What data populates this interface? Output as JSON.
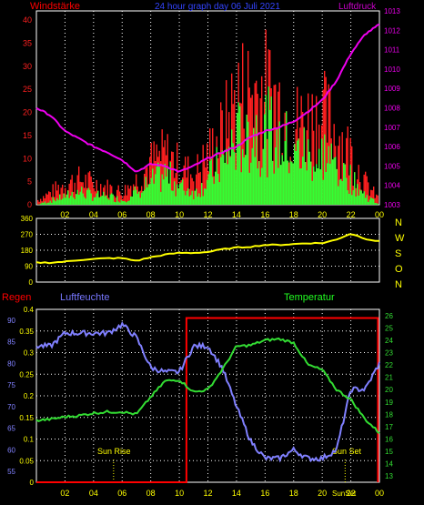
{
  "header": {
    "left": "Windstärke",
    "center": "24 hour graph day  06 Juli 2021",
    "right": "Luftdruck"
  },
  "panel2": {
    "right_labels": [
      "N",
      "W",
      "S",
      "O",
      "N"
    ]
  },
  "panel3": {
    "labels": {
      "left1": "Regen",
      "left2": "Luftfeuchte",
      "right": "Temperatur"
    },
    "annotations": {
      "sunrise": "Sun Rise",
      "sunset": "Sun Set",
      "sunset_bottom": "SunSet"
    }
  },
  "colors": {
    "gust": "#ff2020",
    "wind": "#33ff33",
    "pressure": "#ee00ee",
    "direction": "#ffff00",
    "humidity": "#8080ff",
    "temperature": "#33dd33",
    "rain": "#ff0000",
    "grid": "#ffffff",
    "tick_x": "#ffff00"
  },
  "chart_data": [
    {
      "type": "bar",
      "title": "24 hour graph day  06 Juli 2021",
      "ylabel": "Windstärke",
      "y2label": "Luftdruck",
      "ylim": [
        0,
        42
      ],
      "y2lim": [
        1003,
        1013
      ],
      "yticks": [
        0,
        5,
        10,
        15,
        20,
        25,
        30,
        35,
        40
      ],
      "y2ticks": [
        1003,
        1004,
        1005,
        1006,
        1007,
        1008,
        1009,
        1010,
        1011,
        1012,
        1013
      ],
      "x_ticks": [
        "02",
        "04",
        "06",
        "08",
        "10",
        "12",
        "14",
        "16",
        "18",
        "20",
        "22",
        "00"
      ],
      "x_hours": [
        0,
        24
      ],
      "gust_profile": {
        "x": [
          0,
          1,
          2,
          3,
          4,
          5,
          6,
          7,
          8,
          9,
          10,
          11,
          12,
          13,
          14,
          15,
          16,
          17,
          18,
          19,
          20,
          21,
          22,
          23,
          24
        ],
        "y": [
          1,
          3,
          5,
          6,
          5,
          4,
          3,
          6,
          10,
          12,
          9,
          7,
          12,
          17,
          26,
          27,
          27,
          24,
          19,
          20,
          21,
          17,
          12,
          5,
          1
        ]
      },
      "wind_profile": {
        "x": [
          0,
          1,
          2,
          3,
          4,
          5,
          6,
          7,
          8,
          9,
          10,
          11,
          12,
          13,
          14,
          15,
          16,
          17,
          18,
          19,
          20,
          21,
          22,
          23,
          24
        ],
        "y": [
          0,
          1,
          2,
          3,
          2,
          2,
          1,
          3,
          5,
          7,
          4,
          3,
          6,
          10,
          15,
          17,
          17,
          15,
          12,
          12,
          12,
          9,
          6,
          2,
          0
        ]
      },
      "pressure": {
        "x": [
          0,
          1,
          2,
          3,
          4,
          5,
          6,
          7,
          8,
          9,
          10,
          11,
          12,
          13,
          14,
          15,
          16,
          17,
          18,
          19,
          20,
          21,
          22,
          23,
          24
        ],
        "y": [
          1008.0,
          1007.6,
          1006.8,
          1006.4,
          1006.0,
          1005.7,
          1005.3,
          1004.7,
          1005.1,
          1005.0,
          1004.7,
          1005.0,
          1005.4,
          1005.7,
          1006.0,
          1006.5,
          1006.8,
          1007.0,
          1007.3,
          1007.8,
          1008.4,
          1009.4,
          1010.8,
          1011.8,
          1012.3
        ]
      }
    },
    {
      "type": "line",
      "yticks": [
        0,
        90,
        180,
        270,
        360
      ],
      "ylim": [
        0,
        360
      ],
      "wind_direction": {
        "x": [
          0,
          1,
          2,
          3,
          4,
          5,
          6,
          7,
          8,
          9,
          10,
          11,
          12,
          13,
          14,
          15,
          16,
          17,
          18,
          19,
          20,
          21,
          22,
          23,
          24
        ],
        "y": [
          110,
          110,
          115,
          125,
          130,
          135,
          135,
          120,
          140,
          155,
          165,
          165,
          170,
          185,
          195,
          200,
          210,
          210,
          215,
          220,
          220,
          240,
          275,
          245,
          230
        ]
      }
    },
    {
      "type": "line",
      "rain_ylim": [
        0,
        0.4
      ],
      "rain_ticks": [
        0,
        0.05,
        0.1,
        0.15,
        0.2,
        0.25,
        0.3,
        0.35,
        0.4
      ],
      "humidity_ylim": [
        52.5,
        92.5
      ],
      "humidity_ticks": [
        55,
        60,
        65,
        70,
        75,
        80,
        85,
        90
      ],
      "temp_ylim": [
        12.5,
        26.5
      ],
      "temp_ticks": [
        13,
        14,
        15,
        16,
        17,
        18,
        19,
        20,
        21,
        22,
        23,
        24,
        25,
        26
      ],
      "x_ticks": [
        "02",
        "04",
        "06",
        "08",
        "10",
        "12",
        "14",
        "16",
        "18",
        "20",
        "22",
        "00"
      ],
      "humidity": {
        "x": [
          0,
          1,
          2,
          3,
          4,
          5,
          6,
          7,
          8,
          9,
          10,
          11,
          12,
          13,
          14,
          15,
          16,
          17,
          18,
          19,
          20,
          21,
          22,
          23,
          24
        ],
        "y": [
          84,
          84,
          87,
          87,
          87,
          87,
          89,
          86,
          79,
          78,
          78,
          84,
          84,
          79,
          70,
          62,
          58,
          58,
          60,
          58,
          58,
          60,
          74,
          74,
          80
        ]
      },
      "temperature": {
        "x": [
          0,
          1,
          2,
          3,
          4,
          5,
          6,
          7,
          8,
          9,
          10,
          11,
          12,
          13,
          14,
          15,
          16,
          17,
          18,
          19,
          20,
          21,
          22,
          23,
          24
        ],
        "y": [
          17.5,
          17.6,
          17.8,
          17.9,
          18.1,
          18.2,
          18.2,
          18.0,
          19.4,
          20.7,
          20.8,
          19.8,
          20.0,
          21.6,
          23.5,
          23.6,
          24.0,
          24.1,
          23.8,
          22.0,
          21.6,
          20.0,
          19.2,
          17.6,
          16.5
        ]
      },
      "rain": {
        "x": [
          0,
          10.5,
          10.5,
          23.9,
          23.9
        ],
        "y": [
          0,
          0,
          0.38,
          0.38,
          0
        ]
      },
      "sunrise_hour": 5.4,
      "sunset_hour": 21.6
    }
  ]
}
